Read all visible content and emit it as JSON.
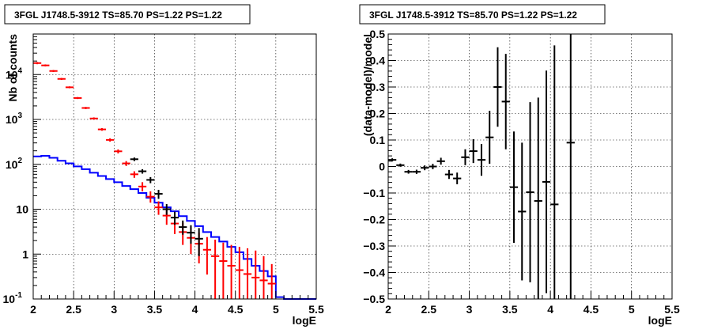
{
  "chart_data": [
    {
      "type": "line",
      "title": "3FGL J1748.5-3912 TS=85.70 PS=1.22 PS=1.22",
      "xlabel": "logE",
      "ylabel": "Nb of counts",
      "xlim": [
        2,
        5.5
      ],
      "ylim": [
        0.1,
        80000
      ],
      "y_scale": "log",
      "grid": true,
      "x_ticks": [
        "2",
        "2.5",
        "3",
        "3.5",
        "4",
        "4.5",
        "5",
        "5.5"
      ],
      "y_ticks": [
        {
          "value": 0.1,
          "label": "10",
          "exp": "-1"
        },
        {
          "value": 1,
          "label": "1",
          "exp": ""
        },
        {
          "value": 10,
          "label": "10",
          "exp": ""
        },
        {
          "value": 100,
          "label": "10",
          "exp": "2"
        },
        {
          "value": 1000,
          "label": "10",
          "exp": "3"
        },
        {
          "value": 10000,
          "label": "10",
          "exp": "4"
        }
      ],
      "series": [
        {
          "color": "#0000ff",
          "style": "step",
          "bin_edges": [
            2.0,
            2.1,
            2.2,
            2.3,
            2.4,
            2.5,
            2.6,
            2.7,
            2.8,
            2.9,
            3.0,
            3.1,
            3.2,
            3.3,
            3.4,
            3.5,
            3.6,
            3.7,
            3.8,
            3.9,
            4.0,
            4.1,
            4.2,
            4.3,
            4.4,
            4.5,
            4.6,
            4.7,
            4.8,
            4.9,
            5.0,
            5.1,
            5.2,
            5.3,
            5.4,
            5.5
          ],
          "values": [
            150,
            155,
            140,
            120,
            105,
            90,
            78,
            65,
            55,
            47,
            40,
            33,
            28,
            23,
            18,
            14,
            11,
            9,
            7,
            5.5,
            4.2,
            3.1,
            2.4,
            1.9,
            1.45,
            1.1,
            0.78,
            0.55,
            0.42,
            0.32,
            0.11,
            0.1,
            0.1,
            0.1,
            0.1
          ]
        },
        {
          "color": "#ff0000",
          "style": "errorbar",
          "x": [
            2.05,
            2.15,
            2.25,
            2.35,
            2.45,
            2.55,
            2.65,
            2.75,
            2.85,
            2.95,
            3.05,
            3.15,
            3.25,
            3.35,
            3.45,
            3.55,
            3.65,
            3.75,
            3.85,
            3.95,
            4.05,
            4.15,
            4.25,
            4.35,
            4.45,
            4.55,
            4.65,
            4.75,
            4.85,
            4.95
          ],
          "values": [
            18000,
            16000,
            12000,
            8000,
            5200,
            3000,
            1800,
            1050,
            600,
            350,
            195,
            105,
            60,
            32,
            19,
            11,
            7.2,
            4.8,
            3.1,
            2.3,
            1.7,
            1.25,
            0.9,
            0.7,
            0.55,
            0.44,
            0.36,
            0.3,
            0.26,
            0.22
          ],
          "err_low": [
            17000,
            15200,
            11400,
            7600,
            4950,
            2850,
            1700,
            990,
            560,
            320,
            175,
            92,
            50,
            25,
            14,
            7.5,
            4.5,
            2.8,
            1.6,
            1.0,
            0.62,
            0.35,
            0.1,
            0.1,
            0.1,
            0.1,
            0.1,
            0.1,
            0.1,
            0.1
          ],
          "err_high": [
            19000,
            16800,
            12600,
            8400,
            5450,
            3150,
            1900,
            1110,
            640,
            380,
            215,
            118,
            70,
            40,
            25,
            15,
            10.2,
            7.2,
            5,
            3.9,
            3,
            2.4,
            2.1,
            1.8,
            1.6,
            1.45,
            1.35,
            1.2,
            0.9,
            0.6
          ]
        },
        {
          "color": "#000000",
          "style": "errorbar",
          "x": [
            3.25,
            3.35,
            3.45,
            3.55,
            3.65,
            3.75,
            3.85,
            3.95,
            4.05
          ],
          "values": [
            130,
            70,
            45,
            22,
            10,
            6.5,
            4,
            3,
            2.2
          ],
          "err_low": [
            118,
            62,
            38,
            17,
            7.5,
            4.5,
            2.7,
            1.7,
            0.9
          ],
          "err_high": [
            142,
            78,
            52,
            27,
            13,
            8.8,
            5.6,
            4.4,
            3.8
          ]
        }
      ]
    },
    {
      "type": "scatter",
      "title": "3FGL J1748.5-3912 TS=85.70 PS=1.22 PS=1.22",
      "xlabel": "logE",
      "ylabel": "(data-model)/model",
      "xlim": [
        2,
        5.5
      ],
      "ylim": [
        -0.5,
        0.5
      ],
      "grid": true,
      "x_ticks": [
        "2",
        "2.5",
        "3",
        "3.5",
        "4",
        "4.5",
        "5",
        "5.5"
      ],
      "y_ticks": [
        {
          "value": -0.5,
          "label": "−0.5"
        },
        {
          "value": -0.4,
          "label": "−0.4"
        },
        {
          "value": -0.3,
          "label": "−0.3"
        },
        {
          "value": -0.2,
          "label": "−0.2"
        },
        {
          "value": -0.1,
          "label": "−0.1"
        },
        {
          "value": 0,
          "label": "0"
        },
        {
          "value": 0.1,
          "label": "0.1"
        },
        {
          "value": 0.2,
          "label": "0.2"
        },
        {
          "value": 0.3,
          "label": "0.3"
        },
        {
          "value": 0.4,
          "label": "0.4"
        },
        {
          "value": 0.5,
          "label": "0.5"
        }
      ],
      "series": [
        {
          "color": "#000000",
          "style": "errorbar",
          "x": [
            2.05,
            2.15,
            2.25,
            2.35,
            2.45,
            2.55,
            2.65,
            2.75,
            2.85,
            2.95,
            3.05,
            3.15,
            3.25,
            3.35,
            3.45,
            3.55,
            3.65,
            3.75,
            3.85,
            3.95,
            4.05,
            4.25
          ],
          "values": [
            0.025,
            0.005,
            -0.02,
            -0.02,
            -0.005,
            0.0,
            0.02,
            -0.03,
            -0.045,
            0.035,
            0.058,
            0.025,
            0.11,
            0.3,
            0.245,
            -0.078,
            -0.17,
            -0.097,
            -0.13,
            -0.058,
            -0.143,
            0.09
          ],
          "err": [
            0.006,
            0.006,
            0.007,
            0.008,
            0.009,
            0.01,
            0.013,
            0.017,
            0.022,
            0.03,
            0.045,
            0.06,
            0.1,
            0.15,
            0.18,
            0.21,
            0.26,
            0.34,
            0.39,
            0.42,
            0.6,
            0.6
          ]
        }
      ]
    }
  ]
}
